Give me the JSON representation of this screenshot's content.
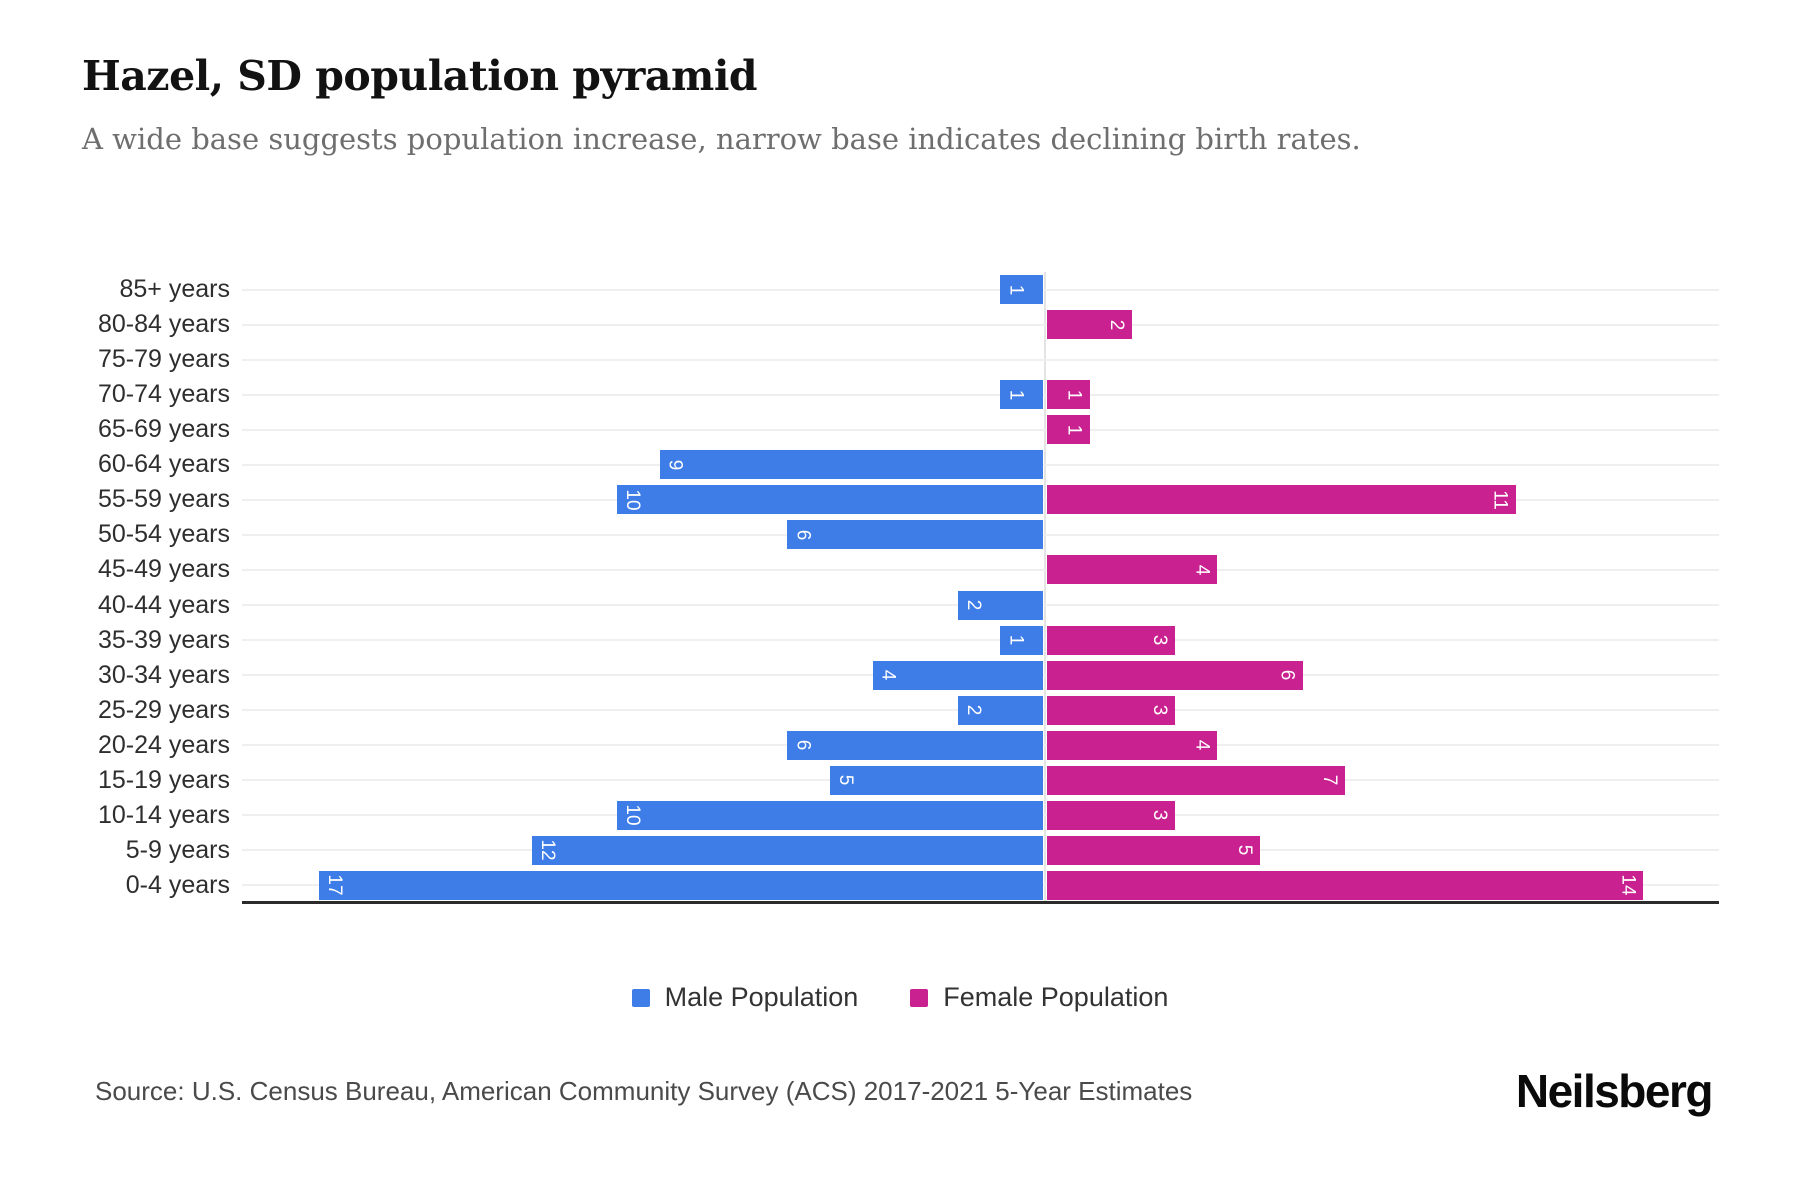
{
  "header": {
    "title": "Hazel, SD population pyramid",
    "subtitle": "A wide base suggests population increase, narrow base indicates declining birth rates."
  },
  "chart_data": {
    "type": "bar",
    "variant": "population-pyramid",
    "orientation": "horizontal-diverging",
    "grid": true,
    "value_labels": "inside-bar-ends, rotated 90deg, white",
    "categories": [
      "85+ years",
      "80-84 years",
      "75-79 years",
      "70-74 years",
      "65-69 years",
      "60-64 years",
      "55-59 years",
      "50-54 years",
      "45-49 years",
      "40-44 years",
      "35-39 years",
      "30-34 years",
      "25-29 years",
      "20-24 years",
      "15-19 years",
      "10-14 years",
      "5-9 years",
      "0-4 years"
    ],
    "series": [
      {
        "name": "Male Population",
        "side": "left",
        "color": "#3E7DE7",
        "values": [
          1,
          0,
          0,
          1,
          0,
          9,
          10,
          6,
          0,
          2,
          1,
          4,
          2,
          6,
          5,
          10,
          12,
          17
        ]
      },
      {
        "name": "Female Population",
        "side": "right",
        "color": "#C92190",
        "values": [
          0,
          2,
          0,
          1,
          1,
          0,
          11,
          0,
          4,
          0,
          3,
          6,
          3,
          4,
          7,
          3,
          5,
          14
        ]
      }
    ],
    "axis": {
      "left_max": 18.8,
      "right_max": 15.8,
      "ticks_shown": false
    }
  },
  "legend": {
    "position": "bottom-center",
    "items": [
      {
        "label": "Male Population",
        "color": "#3E7DE7"
      },
      {
        "label": "Female Population",
        "color": "#C92190"
      }
    ]
  },
  "footer": {
    "source": "Source: U.S. Census Bureau, American Community Survey (ACS) 2017-2021 5-Year Estimates",
    "logo": "Neilsberg"
  },
  "colors": {
    "male": "#3E7DE7",
    "female": "#C92190",
    "gridline": "#efefef",
    "axis_line": "#2b2b2b",
    "subtitle_text": "#6e6e6e"
  }
}
